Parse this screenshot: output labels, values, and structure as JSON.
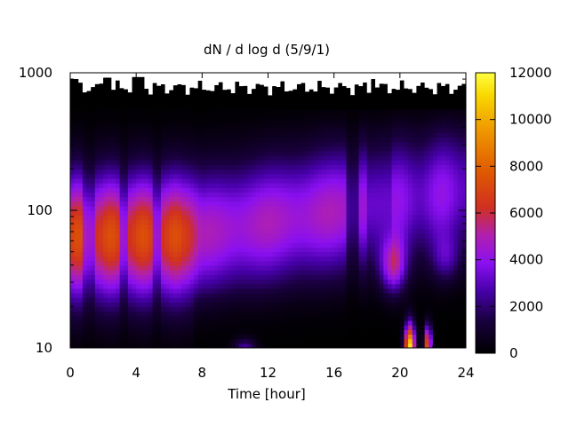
{
  "chart_data": {
    "type": "heatmap",
    "title": "dN / d log d (5/9/1)",
    "xlabel": "Time [hour]",
    "ylabel": "",
    "xlim": [
      0,
      24
    ],
    "ylim": [
      10,
      1000
    ],
    "y_scale": "log",
    "x_ticks": [
      0,
      4,
      8,
      12,
      16,
      20,
      24
    ],
    "x_tick_labels": [
      "0",
      "4",
      "8",
      "12",
      "16",
      "20",
      "24"
    ],
    "y_ticks": [
      10,
      100,
      1000
    ],
    "y_tick_labels": [
      "10",
      "100",
      "1000"
    ],
    "colorbar": {
      "range": [
        0,
        12000
      ],
      "ticks": [
        0,
        2000,
        4000,
        6000,
        8000,
        10000,
        12000
      ],
      "tick_labels": [
        "0",
        "2000",
        "4000",
        "6000",
        "8000",
        "10000",
        "12000"
      ],
      "palette": "gnuplot black-blue-violet-red-orange-yellow"
    },
    "peak_diameter_by_time": [
      {
        "hours": [
          0,
          7
        ],
        "diameter": 65,
        "value": 7000
      },
      {
        "hours": [
          7,
          18
        ],
        "diameter": 100,
        "value": 4500
      },
      {
        "hours": [
          18.5,
          20
        ],
        "diameter": 40,
        "value": 7000
      },
      {
        "hours": [
          20.3,
          21.8
        ],
        "diameter": 11,
        "value": 11000
      }
    ],
    "grid": false,
    "legend": "none"
  }
}
